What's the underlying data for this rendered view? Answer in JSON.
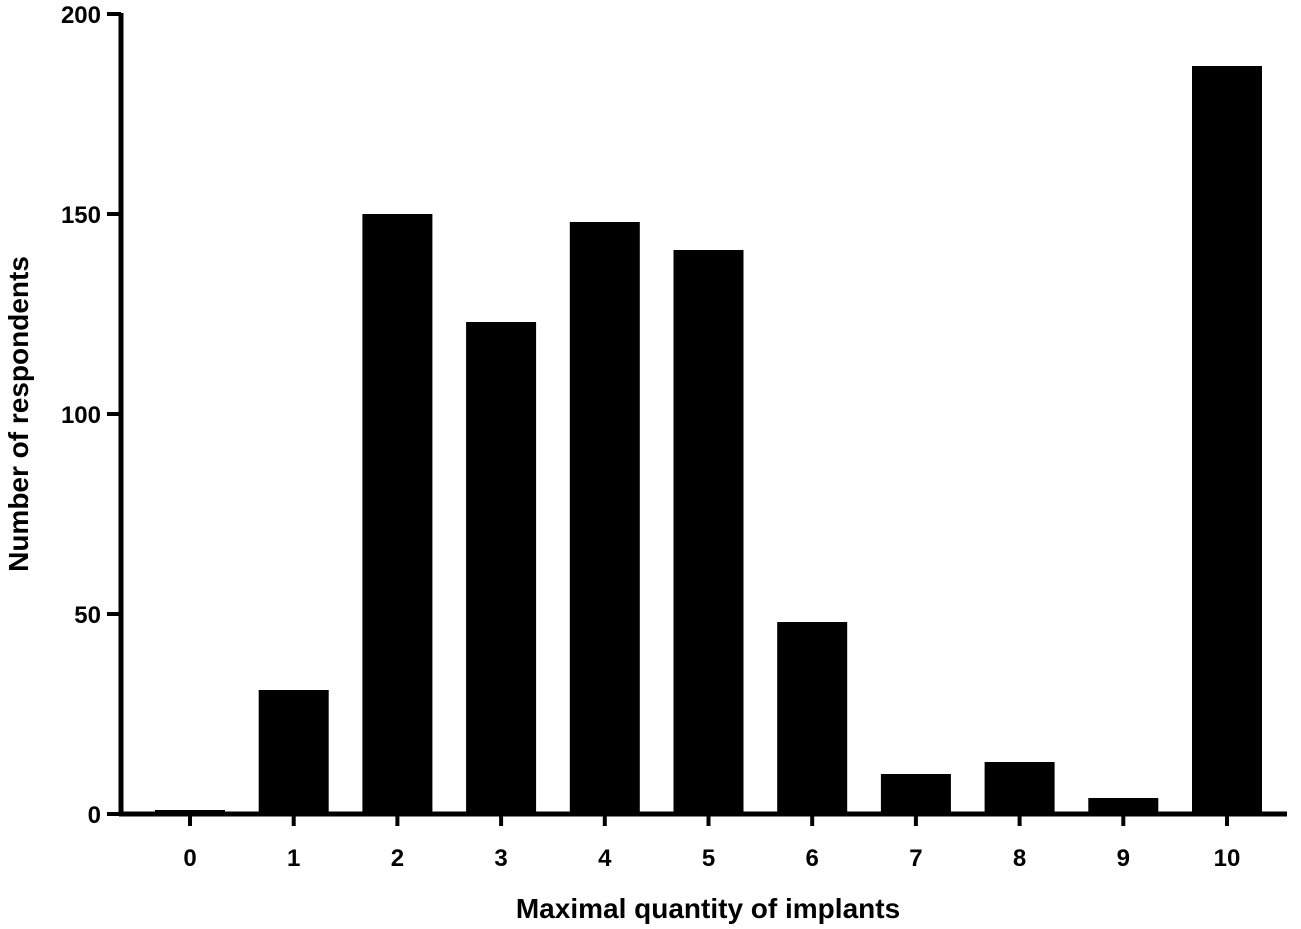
{
  "chart_data": {
    "type": "bar",
    "categories": [
      "0",
      "1",
      "2",
      "3",
      "4",
      "5",
      "6",
      "7",
      "8",
      "9",
      "10"
    ],
    "values": [
      1,
      31,
      150,
      123,
      148,
      141,
      48,
      10,
      13,
      4,
      187
    ],
    "xlabel": "Maximal quantity of implants",
    "ylabel": "Number of respondents",
    "ylim": [
      0,
      200
    ],
    "yticks": [
      0,
      50,
      100,
      150,
      200
    ],
    "grid": false,
    "colors": {
      "bar": "#000000",
      "axis": "#000000"
    }
  }
}
